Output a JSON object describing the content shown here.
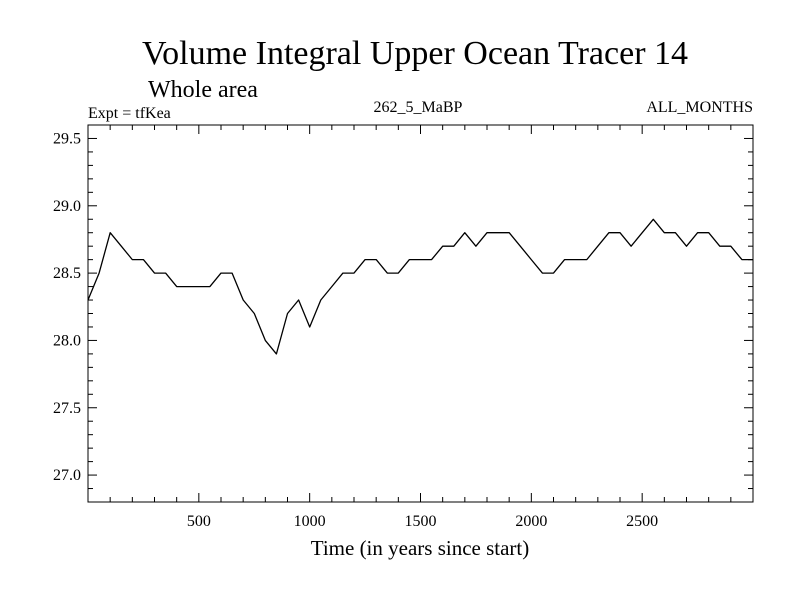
{
  "chart_data": {
    "type": "line",
    "title": "Volume Integral Upper Ocean Tracer 14",
    "subtitle": "Whole area",
    "labels": {
      "experiment": "Expt = tfKea",
      "run": "262_5_MaBP",
      "months": "ALL_MONTHS"
    },
    "xlabel": "Time (in years since start)",
    "ylabel": "",
    "xlim": [
      0,
      3000
    ],
    "ylim": [
      26.8,
      29.6
    ],
    "xticks": [
      500,
      1000,
      1500,
      2000,
      2500
    ],
    "xtick_labels": [
      "500",
      "1000",
      "1500",
      "2000",
      "2500"
    ],
    "yticks": [
      27.0,
      27.5,
      28.0,
      28.5,
      29.0,
      29.5
    ],
    "ytick_labels": [
      "27.0",
      "27.5",
      "28.0",
      "28.5",
      "29.0",
      "29.5"
    ],
    "grid": false,
    "series": [
      {
        "color": "#000000",
        "x": [
          0,
          50,
          100,
          150,
          200,
          250,
          300,
          350,
          400,
          450,
          500,
          550,
          600,
          650,
          700,
          750,
          800,
          850,
          900,
          950,
          1000,
          1050,
          1100,
          1150,
          1200,
          1250,
          1300,
          1350,
          1400,
          1450,
          1500,
          1550,
          1600,
          1650,
          1700,
          1750,
          1800,
          1850,
          1900,
          1950,
          2000,
          2050,
          2100,
          2150,
          2200,
          2250,
          2300,
          2350,
          2400,
          2450,
          2500,
          2550,
          2600,
          2650,
          2700,
          2750,
          2800,
          2850,
          2900,
          2950,
          3000
        ],
        "y": [
          28.3,
          28.5,
          28.8,
          28.7,
          28.6,
          28.6,
          28.5,
          28.5,
          28.4,
          28.4,
          28.4,
          28.4,
          28.5,
          28.5,
          28.3,
          28.2,
          28.0,
          27.9,
          28.2,
          28.3,
          28.1,
          28.3,
          28.4,
          28.5,
          28.5,
          28.6,
          28.6,
          28.5,
          28.5,
          28.6,
          28.6,
          28.6,
          28.7,
          28.7,
          28.8,
          28.7,
          28.8,
          28.8,
          28.8,
          28.7,
          28.6,
          28.5,
          28.5,
          28.6,
          28.6,
          28.6,
          28.7,
          28.8,
          28.8,
          28.7,
          28.8,
          28.9,
          28.8,
          28.8,
          28.7,
          28.8,
          28.8,
          28.7,
          28.7,
          28.6,
          28.6
        ]
      }
    ]
  }
}
